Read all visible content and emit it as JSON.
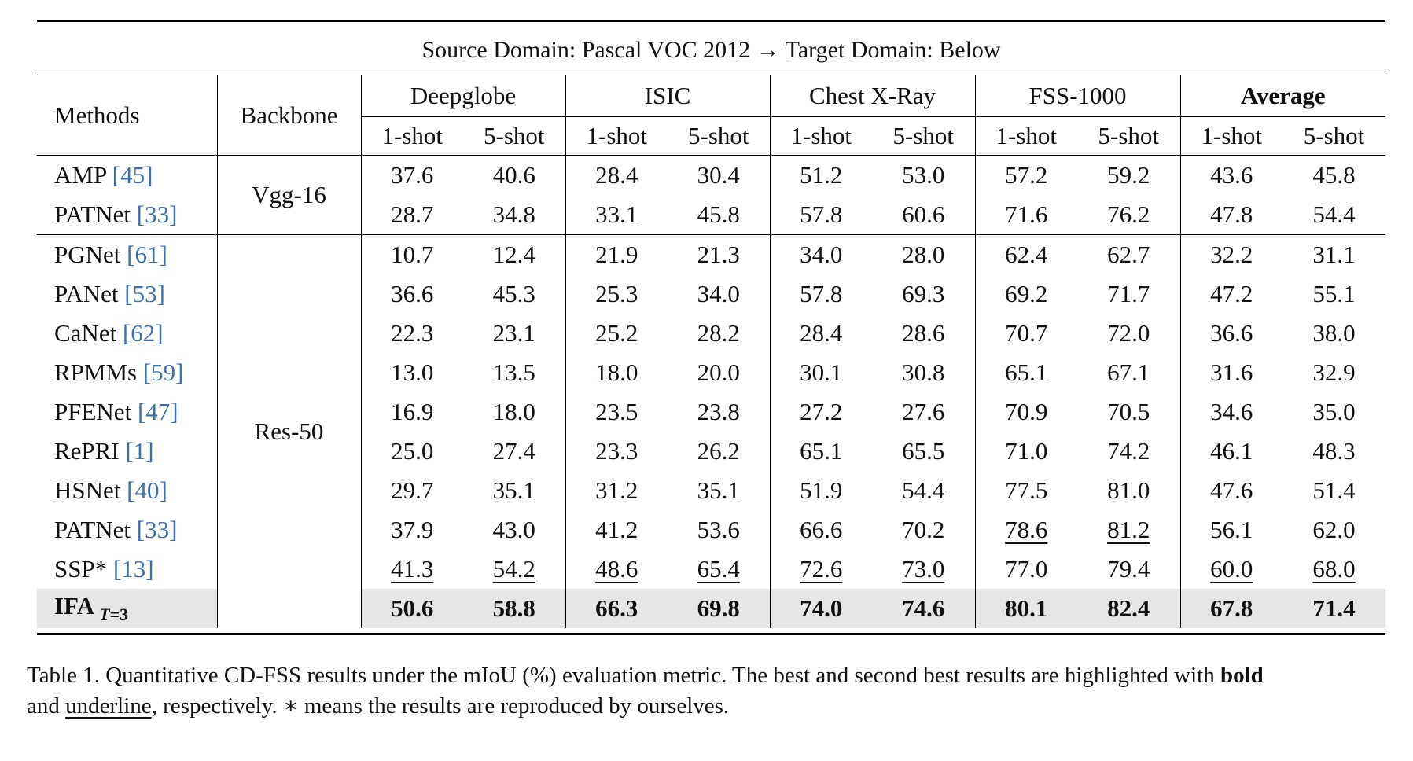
{
  "table": {
    "title_prefix": "Source Domain: Pascal VOC 2012",
    "title_arrow": "→",
    "title_suffix": "Target Domain: Below",
    "col_methods": "Methods",
    "col_backbone": "Backbone",
    "groups": [
      "Deepglobe",
      "ISIC",
      "Chest X-Ray",
      "FSS-1000",
      "Average"
    ],
    "shot1": "1-shot",
    "shot5": "5-shot",
    "backbones": [
      "Vgg-16",
      "Res-50"
    ],
    "rows": [
      {
        "name": "AMP",
        "cite": "[45]",
        "values": [
          "37.6",
          "40.6",
          "28.4",
          "30.4",
          "51.2",
          "53.0",
          "57.2",
          "59.2",
          "43.6",
          "45.8"
        ]
      },
      {
        "name": "PATNet",
        "cite": "[33]",
        "values": [
          "28.7",
          "34.8",
          "33.1",
          "45.8",
          "57.8",
          "60.6",
          "71.6",
          "76.2",
          "47.8",
          "54.4"
        ]
      },
      {
        "name": "PGNet",
        "cite": "[61]",
        "values": [
          "10.7",
          "12.4",
          "21.9",
          "21.3",
          "34.0",
          "28.0",
          "62.4",
          "62.7",
          "32.2",
          "31.1"
        ]
      },
      {
        "name": "PANet",
        "cite": "[53]",
        "values": [
          "36.6",
          "45.3",
          "25.3",
          "34.0",
          "57.8",
          "69.3",
          "69.2",
          "71.7",
          "47.2",
          "55.1"
        ]
      },
      {
        "name": "CaNet",
        "cite": "[62]",
        "values": [
          "22.3",
          "23.1",
          "25.2",
          "28.2",
          "28.4",
          "28.6",
          "70.7",
          "72.0",
          "36.6",
          "38.0"
        ]
      },
      {
        "name": "RPMMs",
        "cite": "[59]",
        "values": [
          "13.0",
          "13.5",
          "18.0",
          "20.0",
          "30.1",
          "30.8",
          "65.1",
          "67.1",
          "31.6",
          "32.9"
        ]
      },
      {
        "name": "PFENet",
        "cite": "[47]",
        "values": [
          "16.9",
          "18.0",
          "23.5",
          "23.8",
          "27.2",
          "27.6",
          "70.9",
          "70.5",
          "34.6",
          "35.0"
        ]
      },
      {
        "name": "RePRI",
        "cite": "[1]",
        "values": [
          "25.0",
          "27.4",
          "23.3",
          "26.2",
          "65.1",
          "65.5",
          "71.0",
          "74.2",
          "46.1",
          "48.3"
        ]
      },
      {
        "name": "HSNet",
        "cite": "[40]",
        "values": [
          "29.7",
          "35.1",
          "31.2",
          "35.1",
          "51.9",
          "54.4",
          "77.5",
          "81.0",
          "47.6",
          "51.4"
        ]
      },
      {
        "name": "PATNet",
        "cite": "[33]",
        "values": [
          "37.9",
          "43.0",
          "41.2",
          "53.6",
          "66.6",
          "70.2",
          "78.6",
          "81.2",
          "56.1",
          "62.0"
        ]
      },
      {
        "name": "SSP*",
        "cite": "[13]",
        "values": [
          "41.3",
          "54.2",
          "48.6",
          "65.4",
          "72.6",
          "73.0",
          "77.0",
          "79.4",
          "60.0",
          "68.0"
        ]
      }
    ],
    "ours": {
      "name": "IFA",
      "sub_var": "T",
      "sub_eq": "=3",
      "values": [
        "50.6",
        "58.8",
        "66.3",
        "69.8",
        "74.0",
        "74.6",
        "80.1",
        "82.4",
        "67.8",
        "71.4"
      ]
    }
  },
  "caption": {
    "part1": "Table 1. Quantitative CD-FSS results under the mIoU (%) evaluation metric. The best and second best results are highlighted with ",
    "bold_word": "bold",
    "part2": "and ",
    "underline_word": "underline",
    "part3": ", respectively. ∗ means the results are reproduced by ourselves."
  }
}
